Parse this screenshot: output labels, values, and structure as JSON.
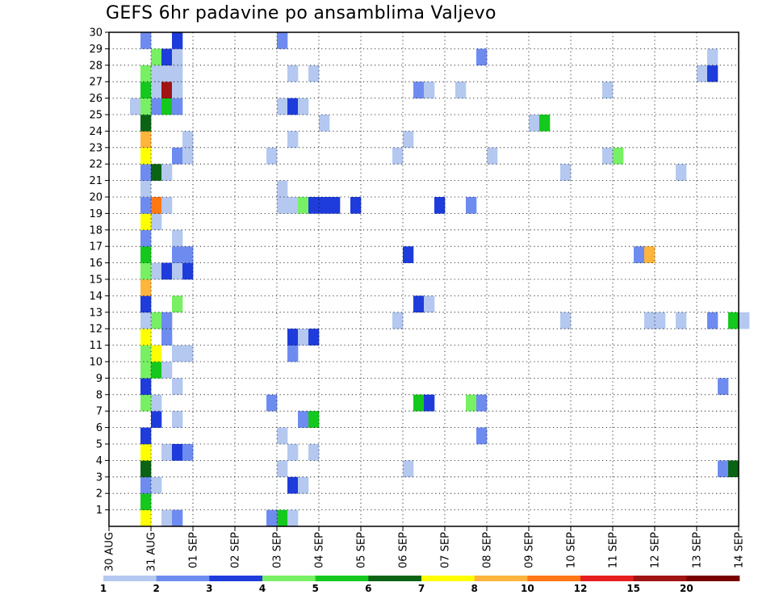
{
  "chart_data": {
    "type": "heatmap",
    "title": "GEFS 6hr padavine po ansamblima Valjevo",
    "xlabel": "",
    "ylabel": "",
    "x_tick_labels": [
      "30 AUG",
      "31 AUG",
      "01 SEP",
      "02 SEP",
      "03 SEP",
      "04 SEP",
      "05 SEP",
      "06 SEP",
      "07 SEP",
      "08 SEP",
      "09 SEP",
      "10 SEP",
      "11 SEP",
      "12 SEP",
      "13 SEP",
      "14 SEP"
    ],
    "y_tick_labels": [
      "1",
      "2",
      "3",
      "4",
      "5",
      "6",
      "7",
      "8",
      "9",
      "10",
      "11",
      "12",
      "13",
      "14",
      "15",
      "16",
      "17",
      "18",
      "19",
      "20",
      "21",
      "22",
      "23",
      "24",
      "25",
      "26",
      "27",
      "28",
      "29",
      "30"
    ],
    "ylim": [
      0,
      30
    ],
    "grid": true,
    "time_step": "6hr",
    "colorbar": {
      "position": "bottom",
      "levels": [
        "1",
        "2",
        "3",
        "4",
        "5",
        "6",
        "7",
        "8",
        "10",
        "12",
        "15",
        "20"
      ],
      "colors": [
        "#b4c8f0",
        "#6e8cf0",
        "#1e3cdc",
        "#78f064",
        "#14c81e",
        "#0a6414",
        "#ffff00",
        "#ffb43c",
        "#ff7814",
        "#e61e1e",
        "#a01414",
        "#780000"
      ]
    },
    "cells": [
      {
        "time": "30 AUG 18Z",
        "member": 0,
        "level": 7
      },
      {
        "time": "31 AUG 06Z",
        "member": 0,
        "level": 1
      },
      {
        "time": "31 AUG 12Z",
        "member": 0,
        "level": 2
      },
      {
        "time": "02 SEP 18Z",
        "member": 0,
        "level": 2
      },
      {
        "time": "03 SEP 00Z",
        "member": 0,
        "level": 5
      },
      {
        "time": "03 SEP 06Z",
        "member": 0,
        "level": 1
      },
      {
        "time": "30 AUG 18Z",
        "member": 1,
        "level": 5
      },
      {
        "time": "30 AUG 18Z",
        "member": 2,
        "level": 2
      },
      {
        "time": "31 AUG 00Z",
        "member": 2,
        "level": 1
      },
      {
        "time": "03 SEP 06Z",
        "member": 2,
        "level": 3
      },
      {
        "time": "03 SEP 12Z",
        "member": 2,
        "level": 1
      },
      {
        "time": "30 AUG 18Z",
        "member": 3,
        "level": 6
      },
      {
        "time": "03 SEP 00Z",
        "member": 3,
        "level": 1
      },
      {
        "time": "06 SEP 00Z",
        "member": 3,
        "level": 1
      },
      {
        "time": "13 SEP 12Z",
        "member": 3,
        "level": 2
      },
      {
        "time": "13 SEP 18Z",
        "member": 3,
        "level": 6
      },
      {
        "time": "30 AUG 18Z",
        "member": 4,
        "level": 7
      },
      {
        "time": "31 AUG 06Z",
        "member": 4,
        "level": 1
      },
      {
        "time": "31 AUG 12Z",
        "member": 4,
        "level": 3
      },
      {
        "time": "31 AUG 18Z",
        "member": 4,
        "level": 2
      },
      {
        "time": "03 SEP 06Z",
        "member": 4,
        "level": 1
      },
      {
        "time": "03 SEP 18Z",
        "member": 4,
        "level": 1
      },
      {
        "time": "30 AUG 18Z",
        "member": 5,
        "level": 3
      },
      {
        "time": "03 SEP 00Z",
        "member": 5,
        "level": 1
      },
      {
        "time": "07 SEP 18Z",
        "member": 5,
        "level": 2
      },
      {
        "time": "31 AUG 00Z",
        "member": 6,
        "level": 3
      },
      {
        "time": "31 AUG 12Z",
        "member": 6,
        "level": 1
      },
      {
        "time": "03 SEP 12Z",
        "member": 6,
        "level": 2
      },
      {
        "time": "03 SEP 18Z",
        "member": 6,
        "level": 5
      },
      {
        "time": "30 AUG 18Z",
        "member": 7,
        "level": 4
      },
      {
        "time": "31 AUG 00Z",
        "member": 7,
        "level": 1
      },
      {
        "time": "02 SEP 18Z",
        "member": 7,
        "level": 2
      },
      {
        "time": "06 SEP 06Z",
        "member": 7,
        "level": 5
      },
      {
        "time": "06 SEP 12Z",
        "member": 7,
        "level": 3
      },
      {
        "time": "07 SEP 12Z",
        "member": 7,
        "level": 4
      },
      {
        "time": "07 SEP 18Z",
        "member": 7,
        "level": 2
      },
      {
        "time": "30 AUG 18Z",
        "member": 8,
        "level": 3
      },
      {
        "time": "31 AUG 12Z",
        "member": 8,
        "level": 1
      },
      {
        "time": "13 SEP 12Z",
        "member": 8,
        "level": 2
      },
      {
        "time": "30 AUG 18Z",
        "member": 9,
        "level": 4
      },
      {
        "time": "31 AUG 00Z",
        "member": 9,
        "level": 5
      },
      {
        "time": "31 AUG 06Z",
        "member": 9,
        "level": 1
      },
      {
        "time": "30 AUG 18Z",
        "member": 10,
        "level": 4
      },
      {
        "time": "31 AUG 00Z",
        "member": 10,
        "level": 7
      },
      {
        "time": "31 AUG 12Z",
        "member": 10,
        "level": 1
      },
      {
        "time": "31 AUG 18Z",
        "member": 10,
        "level": 1
      },
      {
        "time": "03 SEP 06Z",
        "member": 10,
        "level": 2
      },
      {
        "time": "30 AUG 18Z",
        "member": 11,
        "level": 7
      },
      {
        "time": "31 AUG 06Z",
        "member": 11,
        "level": 2
      },
      {
        "time": "03 SEP 06Z",
        "member": 11,
        "level": 3
      },
      {
        "time": "03 SEP 12Z",
        "member": 11,
        "level": 1
      },
      {
        "time": "03 SEP 18Z",
        "member": 11,
        "level": 3
      },
      {
        "time": "30 AUG 18Z",
        "member": 12,
        "level": 1
      },
      {
        "time": "31 AUG 00Z",
        "member": 12,
        "level": 4
      },
      {
        "time": "31 AUG 06Z",
        "member": 12,
        "level": 2
      },
      {
        "time": "05 SEP 18Z",
        "member": 12,
        "level": 1
      },
      {
        "time": "09 SEP 18Z",
        "member": 12,
        "level": 1
      },
      {
        "time": "11 SEP 18Z",
        "member": 12,
        "level": 1
      },
      {
        "time": "12 SEP 00Z",
        "member": 12,
        "level": 1
      },
      {
        "time": "12 SEP 12Z",
        "member": 12,
        "level": 1
      },
      {
        "time": "13 SEP 06Z",
        "member": 12,
        "level": 2
      },
      {
        "time": "13 SEP 18Z",
        "member": 12,
        "level": 5
      },
      {
        "time": "14 SEP 00Z",
        "member": 12,
        "level": 1
      },
      {
        "time": "30 AUG 18Z",
        "member": 13,
        "level": 3
      },
      {
        "time": "31 AUG 12Z",
        "member": 13,
        "level": 4
      },
      {
        "time": "06 SEP 06Z",
        "member": 13,
        "level": 3
      },
      {
        "time": "06 SEP 12Z",
        "member": 13,
        "level": 1
      },
      {
        "time": "30 AUG 18Z",
        "member": 14,
        "level": 8
      },
      {
        "time": "30 AUG 18Z",
        "member": 15,
        "level": 4
      },
      {
        "time": "31 AUG 00Z",
        "member": 15,
        "level": 1
      },
      {
        "time": "31 AUG 06Z",
        "member": 15,
        "level": 3
      },
      {
        "time": "31 AUG 12Z",
        "member": 15,
        "level": 1
      },
      {
        "time": "31 AUG 18Z",
        "member": 15,
        "level": 3
      },
      {
        "time": "30 AUG 18Z",
        "member": 16,
        "level": 5
      },
      {
        "time": "31 AUG 12Z",
        "member": 16,
        "level": 2
      },
      {
        "time": "31 AUG 18Z",
        "member": 16,
        "level": 2
      },
      {
        "time": "06 SEP 00Z",
        "member": 16,
        "level": 3
      },
      {
        "time": "11 SEP 12Z",
        "member": 16,
        "level": 2
      },
      {
        "time": "11 SEP 18Z",
        "member": 16,
        "level": 8
      },
      {
        "time": "30 AUG 18Z",
        "member": 17,
        "level": 2
      },
      {
        "time": "31 AUG 12Z",
        "member": 17,
        "level": 1
      },
      {
        "time": "30 AUG 18Z",
        "member": 18,
        "level": 7
      },
      {
        "time": "31 AUG 00Z",
        "member": 18,
        "level": 1
      },
      {
        "time": "30 AUG 18Z",
        "member": 19,
        "level": 2
      },
      {
        "time": "31 AUG 00Z",
        "member": 19,
        "level": 9
      },
      {
        "time": "31 AUG 06Z",
        "member": 19,
        "level": 1
      },
      {
        "time": "03 SEP 00Z",
        "member": 19,
        "level": 1
      },
      {
        "time": "03 SEP 06Z",
        "member": 19,
        "level": 1
      },
      {
        "time": "03 SEP 12Z",
        "member": 19,
        "level": 4
      },
      {
        "time": "03 SEP 18Z",
        "member": 19,
        "level": 3
      },
      {
        "time": "04 SEP 00Z",
        "member": 19,
        "level": 3
      },
      {
        "time": "04 SEP 06Z",
        "member": 19,
        "level": 3
      },
      {
        "time": "04 SEP 18Z",
        "member": 19,
        "level": 3
      },
      {
        "time": "06 SEP 18Z",
        "member": 19,
        "level": 3
      },
      {
        "time": "07 SEP 12Z",
        "member": 19,
        "level": 2
      },
      {
        "time": "30 AUG 18Z",
        "member": 20,
        "level": 1
      },
      {
        "time": "03 SEP 00Z",
        "member": 20,
        "level": 1
      },
      {
        "time": "30 AUG 18Z",
        "member": 21,
        "level": 2
      },
      {
        "time": "31 AUG 00Z",
        "member": 21,
        "level": 6
      },
      {
        "time": "31 AUG 06Z",
        "member": 21,
        "level": 1
      },
      {
        "time": "09 SEP 18Z",
        "member": 21,
        "level": 1
      },
      {
        "time": "12 SEP 12Z",
        "member": 21,
        "level": 1
      },
      {
        "time": "30 AUG 18Z",
        "member": 22,
        "level": 7
      },
      {
        "time": "31 AUG 12Z",
        "member": 22,
        "level": 2
      },
      {
        "time": "31 AUG 18Z",
        "member": 22,
        "level": 1
      },
      {
        "time": "02 SEP 18Z",
        "member": 22,
        "level": 1
      },
      {
        "time": "05 SEP 18Z",
        "member": 22,
        "level": 1
      },
      {
        "time": "08 SEP 00Z",
        "member": 22,
        "level": 1
      },
      {
        "time": "10 SEP 18Z",
        "member": 22,
        "level": 1
      },
      {
        "time": "11 SEP 00Z",
        "member": 22,
        "level": 4
      },
      {
        "time": "30 AUG 18Z",
        "member": 23,
        "level": 8
      },
      {
        "time": "31 AUG 18Z",
        "member": 23,
        "level": 1
      },
      {
        "time": "03 SEP 06Z",
        "member": 23,
        "level": 1
      },
      {
        "time": "06 SEP 00Z",
        "member": 23,
        "level": 1
      },
      {
        "time": "30 AUG 18Z",
        "member": 24,
        "level": 6
      },
      {
        "time": "04 SEP 00Z",
        "member": 24,
        "level": 1
      },
      {
        "time": "09 SEP 00Z",
        "member": 24,
        "level": 1
      },
      {
        "time": "09 SEP 06Z",
        "member": 24,
        "level": 5
      },
      {
        "time": "30 AUG 12Z",
        "member": 25,
        "level": 1
      },
      {
        "time": "30 AUG 18Z",
        "member": 25,
        "level": 4
      },
      {
        "time": "31 AUG 00Z",
        "member": 25,
        "level": 2
      },
      {
        "time": "31 AUG 06Z",
        "member": 25,
        "level": 5
      },
      {
        "time": "31 AUG 12Z",
        "member": 25,
        "level": 2
      },
      {
        "time": "03 SEP 00Z",
        "member": 25,
        "level": 1
      },
      {
        "time": "03 SEP 06Z",
        "member": 25,
        "level": 3
      },
      {
        "time": "03 SEP 12Z",
        "member": 25,
        "level": 1
      },
      {
        "time": "30 AUG 18Z",
        "member": 26,
        "level": 5
      },
      {
        "time": "31 AUG 00Z",
        "member": 26,
        "level": 1
      },
      {
        "time": "31 AUG 06Z",
        "member": 26,
        "level": 11
      },
      {
        "time": "31 AUG 12Z",
        "member": 26,
        "level": 1
      },
      {
        "time": "06 SEP 06Z",
        "member": 26,
        "level": 2
      },
      {
        "time": "06 SEP 12Z",
        "member": 26,
        "level": 1
      },
      {
        "time": "07 SEP 06Z",
        "member": 26,
        "level": 1
      },
      {
        "time": "10 SEP 18Z",
        "member": 26,
        "level": 1
      },
      {
        "time": "30 AUG 18Z",
        "member": 27,
        "level": 4
      },
      {
        "time": "31 AUG 00Z",
        "member": 27,
        "level": 1
      },
      {
        "time": "31 AUG 06Z",
        "member": 27,
        "level": 1
      },
      {
        "time": "31 AUG 12Z",
        "member": 27,
        "level": 1
      },
      {
        "time": "03 SEP 06Z",
        "member": 27,
        "level": 1
      },
      {
        "time": "03 SEP 18Z",
        "member": 27,
        "level": 1
      },
      {
        "time": "13 SEP 00Z",
        "member": 27,
        "level": 1
      },
      {
        "time": "13 SEP 06Z",
        "member": 27,
        "level": 3
      },
      {
        "time": "31 AUG 00Z",
        "member": 28,
        "level": 4
      },
      {
        "time": "31 AUG 06Z",
        "member": 28,
        "level": 3
      },
      {
        "time": "31 AUG 12Z",
        "member": 28,
        "level": 1
      },
      {
        "time": "07 SEP 18Z",
        "member": 28,
        "level": 2
      },
      {
        "time": "13 SEP 06Z",
        "member": 28,
        "level": 1
      },
      {
        "time": "30 AUG 18Z",
        "member": 29,
        "level": 2
      },
      {
        "time": "31 AUG 12Z",
        "member": 29,
        "level": 3
      },
      {
        "time": "03 SEP 00Z",
        "member": 29,
        "level": 2
      }
    ]
  }
}
